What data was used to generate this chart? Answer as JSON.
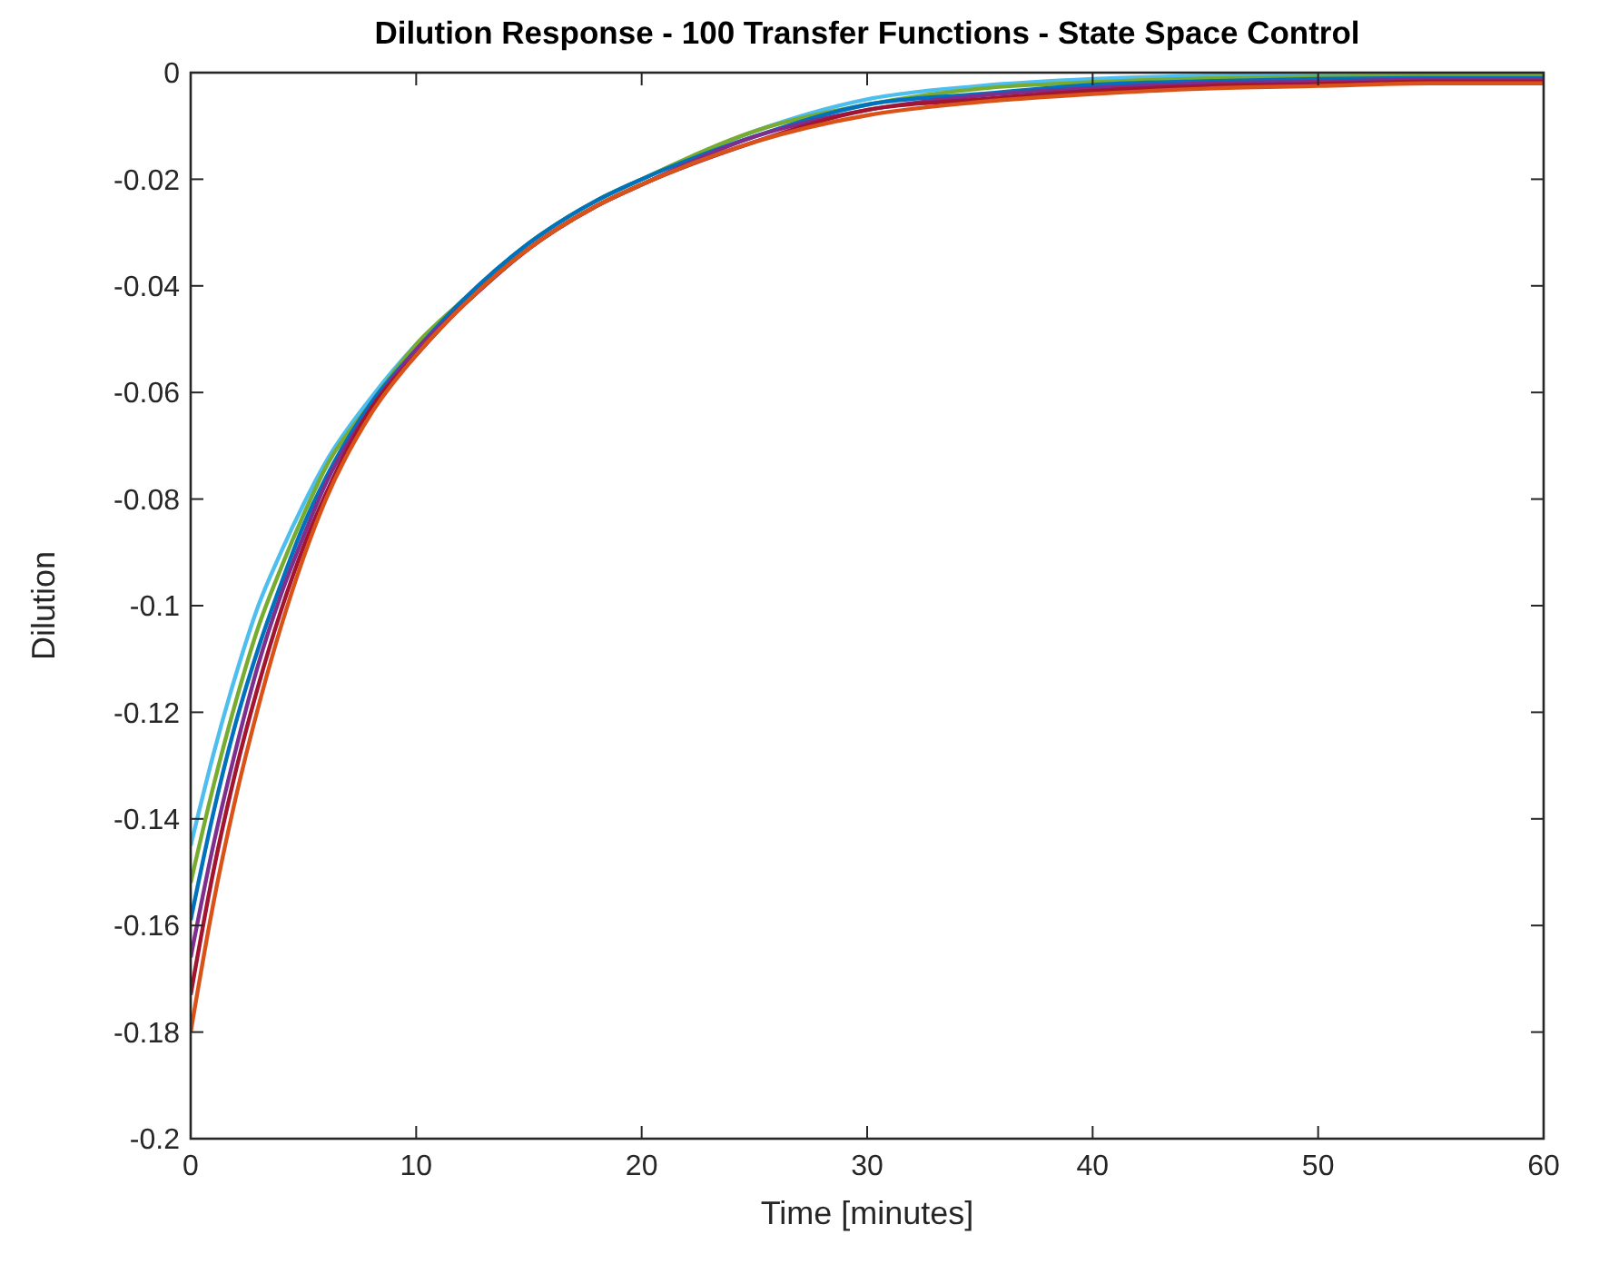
{
  "chart_data": {
    "type": "line",
    "title": "Dilution Response - 100 Transfer Functions - State Space Control",
    "xlabel": "Time [minutes]",
    "ylabel": "Dilution",
    "x": [
      0,
      1,
      2,
      3,
      4,
      5,
      6,
      8,
      10,
      12,
      15,
      18,
      20,
      25,
      30,
      35,
      40,
      45,
      50,
      55,
      60
    ],
    "xlim": [
      0,
      60
    ],
    "xticks": [
      0,
      10,
      20,
      30,
      40,
      50,
      60
    ],
    "ylim": [
      -0.2,
      0
    ],
    "yticks": [
      -0.2,
      -0.18,
      -0.16,
      -0.14,
      -0.12,
      -0.1,
      -0.08,
      -0.06,
      -0.04,
      -0.02,
      0
    ],
    "grid": false,
    "line_style": "solid",
    "marker": "none",
    "series": [
      {
        "color": "#4dbeee",
        "values": [
          -0.145,
          -0.128,
          -0.113,
          -0.1,
          -0.09,
          -0.081,
          -0.073,
          -0.061,
          -0.051,
          -0.043,
          -0.032,
          -0.024,
          -0.02,
          -0.011,
          -0.005,
          -0.0025,
          -0.0012,
          -0.0006,
          -0.0004,
          -0.0003,
          -0.0003
        ]
      },
      {
        "color": "#77ac30",
        "values": [
          -0.152,
          -0.134,
          -0.118,
          -0.104,
          -0.093,
          -0.083,
          -0.074,
          -0.062,
          -0.051,
          -0.043,
          -0.032,
          -0.024,
          -0.02,
          -0.011,
          -0.006,
          -0.003,
          -0.0018,
          -0.0011,
          -0.0008,
          -0.0006,
          -0.0006
        ]
      },
      {
        "color": "#0072bd",
        "values": [
          -0.159,
          -0.139,
          -0.122,
          -0.108,
          -0.096,
          -0.085,
          -0.076,
          -0.062,
          -0.052,
          -0.043,
          -0.032,
          -0.024,
          -0.02,
          -0.012,
          -0.006,
          -0.004,
          -0.0023,
          -0.0016,
          -0.0012,
          -0.001,
          -0.001
        ]
      },
      {
        "color": "#7e2f8e",
        "values": [
          -0.166,
          -0.145,
          -0.127,
          -0.111,
          -0.098,
          -0.087,
          -0.077,
          -0.063,
          -0.052,
          -0.044,
          -0.033,
          -0.025,
          -0.021,
          -0.012,
          -0.007,
          -0.0043,
          -0.0029,
          -0.002,
          -0.0017,
          -0.0013,
          -0.0013
        ]
      },
      {
        "color": "#a2142f",
        "values": [
          -0.173,
          -0.15,
          -0.131,
          -0.115,
          -0.101,
          -0.089,
          -0.079,
          -0.063,
          -0.053,
          -0.044,
          -0.033,
          -0.025,
          -0.021,
          -0.013,
          -0.007,
          -0.005,
          -0.0034,
          -0.0025,
          -0.0021,
          -0.0017,
          -0.0017
        ]
      },
      {
        "color": "#d95319",
        "values": [
          -0.18,
          -0.156,
          -0.136,
          -0.119,
          -0.104,
          -0.091,
          -0.08,
          -0.064,
          -0.053,
          -0.044,
          -0.033,
          -0.025,
          -0.021,
          -0.013,
          -0.008,
          -0.0055,
          -0.004,
          -0.003,
          -0.0025,
          -0.002,
          -0.002
        ]
      }
    ]
  }
}
